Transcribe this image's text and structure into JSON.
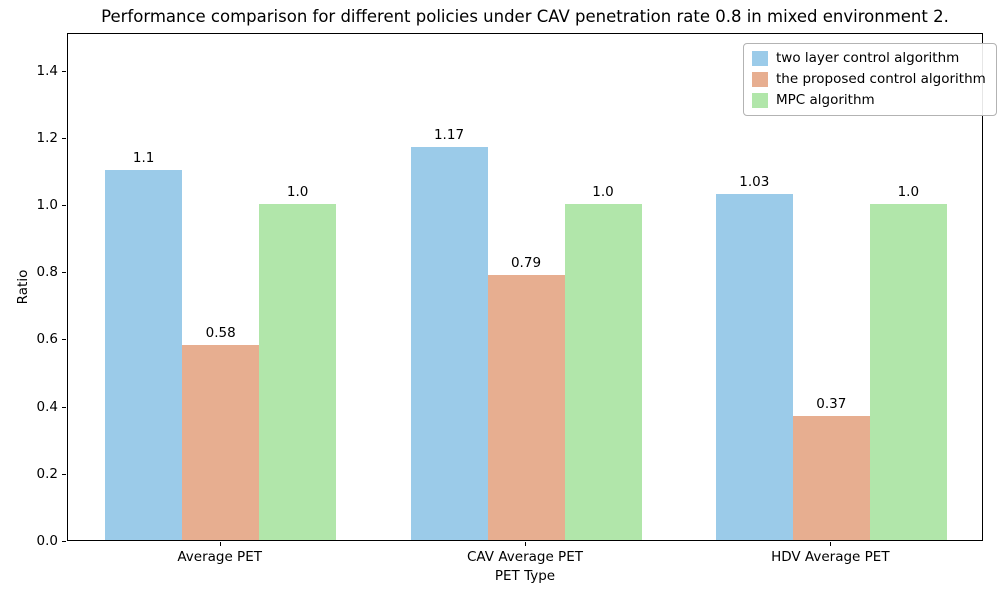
{
  "chart_data": {
    "type": "bar",
    "title": "Performance comparison for different policies under CAV penetration rate 0.8 in mixed environment 2.",
    "xlabel": "PET Type",
    "ylabel": "Ratio",
    "categories": [
      "Average PET",
      "CAV Average PET",
      "HDV Average PET"
    ],
    "series": [
      {
        "name": "two layer control algorithm",
        "color": "#9BCBE9",
        "values": [
          1.1,
          1.17,
          1.03
        ],
        "labels": [
          "1.1",
          "1.17",
          "1.03"
        ]
      },
      {
        "name": "the proposed control algorithm",
        "color": "#E7AE90",
        "values": [
          0.58,
          0.79,
          0.37
        ],
        "labels": [
          "0.58",
          "0.79",
          "0.37"
        ]
      },
      {
        "name": "MPC algorithm",
        "color": "#B1E6AA",
        "values": [
          1.0,
          1.0,
          1.0
        ],
        "labels": [
          "1.0",
          "1.0",
          "1.0"
        ]
      }
    ],
    "yticks": [
      "0.0",
      "0.2",
      "0.4",
      "0.6",
      "0.8",
      "1.0",
      "1.2",
      "1.4"
    ],
    "ylim": [
      0,
      1.512
    ],
    "legend_position": "upper right",
    "grid": false,
    "bar_value_labels_shown": true
  }
}
